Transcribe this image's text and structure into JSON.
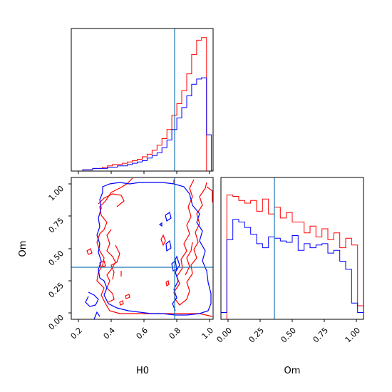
{
  "chart_data": {
    "type": "corner",
    "colors": {
      "red": "#ff0000",
      "blue": "#0000ff",
      "truth": "#1f77b4"
    },
    "truth": {
      "H0": 0.79,
      "Om": 0.35
    },
    "xlabels": {
      "bottom_left": "H0",
      "bottom_right": "Om"
    },
    "ylabels": {
      "bottom_left": "Om"
    },
    "ticks": {
      "H0": [
        "0.2",
        "0.4",
        "0.6",
        "0.8",
        "1.0"
      ],
      "Om": [
        "0.00",
        "0.25",
        "0.50",
        "0.75",
        "1.00"
      ]
    },
    "ranges": {
      "H0": [
        0.15,
        1.02
      ],
      "Om": [
        -0.05,
        1.05
      ]
    },
    "hist_H0": {
      "bins": [
        0.19,
        1.01
      ],
      "red": [
        0,
        1,
        1,
        2,
        2,
        3,
        4,
        5,
        5,
        6,
        7,
        8,
        9,
        11,
        13,
        16,
        20,
        25,
        32,
        43,
        52,
        62,
        75,
        90,
        101,
        103,
        0
      ],
      "blue": [
        0,
        1,
        1,
        2,
        2,
        2,
        3,
        3,
        4,
        4,
        5,
        6,
        7,
        8,
        10,
        12,
        14,
        18,
        24,
        32,
        41,
        49,
        58,
        67,
        71,
        72,
        28
      ]
    },
    "hist_Om": {
      "bins": [
        -0.05,
        1.05
      ],
      "red": [
        0,
        92,
        91,
        88,
        86,
        88,
        80,
        89,
        78,
        83,
        75,
        79,
        72,
        72,
        64,
        69,
        61,
        67,
        59,
        64,
        53,
        60,
        55,
        10
      ],
      "blue": [
        5,
        59,
        74,
        72,
        68,
        63,
        56,
        53,
        61,
        60,
        58,
        57,
        62,
        51,
        56,
        53,
        55,
        56,
        49,
        51,
        43,
        37,
        12,
        5
      ]
    }
  }
}
